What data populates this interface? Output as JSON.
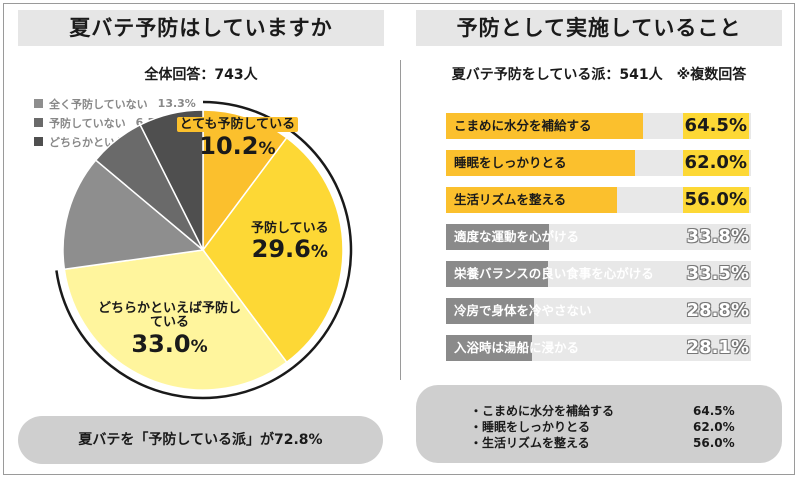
{
  "left": {
    "title": "夏バテ予防はしていますか",
    "subtitle": "全体回答：743人",
    "summary": "夏バテを「予防している派」が72.8%"
  },
  "right": {
    "title": "予防として実施していること",
    "subtitle": "夏バテ予防をしている派：541人　※複数回答"
  },
  "summary_right": [
    {
      "label": "・こまめに水分を補給する",
      "value": "64.5%"
    },
    {
      "label": "・睡眠をしっかりとる",
      "value": "62.0%"
    },
    {
      "label": "・生活リズムを整える",
      "value": "56.0%"
    }
  ],
  "chart_data": [
    {
      "type": "pie",
      "title": "夏バテ予防はしていますか",
      "slices": [
        {
          "label": "とても予防している",
          "value": 10.2,
          "pct_main": "10.2",
          "pct_unit": "%",
          "color": "#fbc02d",
          "legend": false
        },
        {
          "label": "予防している",
          "value": 29.6,
          "pct_main": "29.6",
          "pct_unit": "%",
          "color": "#fdd835",
          "legend": false
        },
        {
          "label": "どちらかといえば予防している",
          "value": 33.0,
          "pct_main": "33.0",
          "pct_unit": "%",
          "color": "#fff59d",
          "legend": false
        },
        {
          "label": "全く予防していない",
          "value": 13.3,
          "value_text": "13.3%",
          "color": "#8e8e8e",
          "legend": true
        },
        {
          "label": "予防していない",
          "value": 6.5,
          "value_text": "6.5%",
          "color": "#6a6a6a",
          "legend": true
        },
        {
          "label": "どちらかといえば予防していない",
          "value": 7.4,
          "value_text": "7.4%",
          "color": "#4f4f4f",
          "legend": true
        }
      ]
    },
    {
      "type": "bar",
      "title": "予防として実施していること",
      "orientation": "horizontal",
      "xlim": [
        0,
        100
      ],
      "bars": [
        {
          "label": "こまめに水分を補給する",
          "value": 64.5,
          "value_text": "64.5%",
          "color": "#fbc02d",
          "highlight": true
        },
        {
          "label": "睡眠をしっかりとる",
          "value": 62.0,
          "value_text": "62.0%",
          "color": "#fbc02d",
          "highlight": true
        },
        {
          "label": "生活リズムを整える",
          "value": 56.0,
          "value_text": "56.0%",
          "color": "#fbc02d",
          "highlight": true
        },
        {
          "label": "適度な運動を心がける",
          "value": 33.8,
          "value_text": "33.8%",
          "color": "#8a8a8a",
          "highlight": false
        },
        {
          "label": "栄養バランスの良い食事を心がける",
          "value": 33.5,
          "value_text": "33.5%",
          "color": "#8a8a8a",
          "highlight": false
        },
        {
          "label": "冷房で身体を冷やさない",
          "value": 28.8,
          "value_text": "28.8%",
          "color": "#8a8a8a",
          "highlight": false
        },
        {
          "label": "入浴時は湯船に浸かる",
          "value": 28.1,
          "value_text": "28.1%",
          "color": "#8a8a8a",
          "highlight": false
        }
      ]
    }
  ]
}
